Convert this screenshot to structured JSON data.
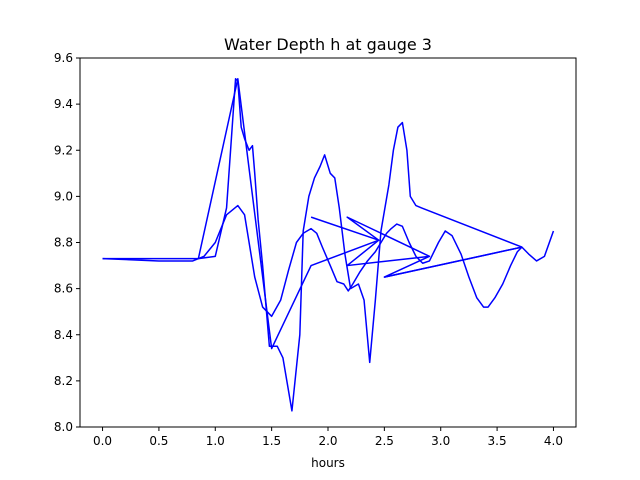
{
  "chart_data": {
    "type": "line",
    "title": "Water Depth h at gauge 3",
    "xlabel": "hours",
    "ylabel": "",
    "xlim": [
      -0.2,
      4.2
    ],
    "ylim": [
      8.0,
      9.6
    ],
    "xticks": [
      "0.0",
      "0.5",
      "1.0",
      "1.5",
      "2.0",
      "2.5",
      "3.0",
      "3.5",
      "4.0"
    ],
    "yticks": [
      "8.0",
      "8.2",
      "8.4",
      "8.6",
      "8.8",
      "9.0",
      "9.2",
      "9.4",
      "9.6"
    ],
    "grid": false,
    "legend": "none",
    "series": [
      {
        "color": "#0000ff",
        "x": [
          0.0,
          0.5,
          0.85,
          1.0,
          1.1,
          1.18,
          1.2,
          1.23,
          1.26,
          1.3,
          1.33,
          1.35,
          1.38,
          1.42,
          1.48,
          1.55,
          1.6,
          1.68,
          1.75,
          1.78,
          1.83,
          1.88,
          1.93,
          1.97,
          2.02,
          2.06,
          2.1,
          2.15,
          2.2,
          2.27,
          2.32,
          2.37,
          2.42,
          2.47,
          2.54,
          2.58,
          2.62,
          2.66,
          2.7,
          2.73,
          2.78,
          2.83,
          3.72,
          3.78,
          3.85,
          3.92,
          4.0
        ],
        "y": [
          8.73,
          8.73,
          8.73,
          8.74,
          8.95,
          9.51,
          9.5,
          9.3,
          9.25,
          9.2,
          9.22,
          9.1,
          8.9,
          8.7,
          8.35,
          8.35,
          8.3,
          8.07,
          8.4,
          8.85,
          9.0,
          9.08,
          9.13,
          9.18,
          9.1,
          9.08,
          8.95,
          8.75,
          8.6,
          8.62,
          8.55,
          8.28,
          8.55,
          8.85,
          9.05,
          9.2,
          9.3,
          9.32,
          9.2,
          9.0,
          8.96,
          8.95,
          8.78,
          8.75,
          8.72,
          8.74,
          8.85
        ]
      },
      {
        "color": "#0000ff",
        "x": [
          0.0,
          0.5,
          0.8,
          0.9,
          1.0,
          1.1,
          1.2,
          1.26,
          1.3,
          1.35,
          1.42,
          1.5,
          1.58,
          1.65,
          1.72,
          1.78,
          1.85,
          1.9,
          1.95,
          2.02,
          2.08,
          2.14,
          2.18,
          2.22,
          2.28,
          2.35,
          2.42,
          2.47,
          2.52,
          2.56,
          2.61,
          2.66,
          2.72,
          2.78,
          2.84,
          2.9,
          2.98,
          3.04,
          3.1,
          3.18,
          3.25,
          3.32,
          3.38,
          3.42,
          3.48,
          3.55,
          3.62,
          3.68,
          3.72
        ],
        "y": [
          8.73,
          8.72,
          8.72,
          8.74,
          8.8,
          8.92,
          8.96,
          8.92,
          8.8,
          8.65,
          8.52,
          8.48,
          8.55,
          8.68,
          8.8,
          8.84,
          8.86,
          8.84,
          8.78,
          8.7,
          8.63,
          8.62,
          8.59,
          8.62,
          8.67,
          8.72,
          8.76,
          8.8,
          8.84,
          8.86,
          8.88,
          8.87,
          8.8,
          8.74,
          8.71,
          8.72,
          8.8,
          8.85,
          8.83,
          8.75,
          8.65,
          8.56,
          8.52,
          8.52,
          8.56,
          8.62,
          8.7,
          8.76,
          8.78
        ]
      },
      {
        "color": "#0000ff",
        "x": [
          0.85,
          1.2,
          1.5,
          1.85,
          2.45,
          2.17,
          2.9,
          2.5,
          3.72
        ],
        "y": [
          8.73,
          9.51,
          8.34,
          8.7,
          8.81,
          8.91,
          8.74,
          8.65,
          8.78
        ]
      },
      {
        "color": "#0000ff",
        "x": [
          1.85,
          2.45,
          2.17,
          2.9
        ],
        "y": [
          8.91,
          8.81,
          8.7,
          8.74
        ]
      },
      {
        "color": "#0000ff",
        "x": [
          2.5,
          3.72
        ],
        "y": [
          8.65,
          8.78
        ]
      }
    ]
  }
}
